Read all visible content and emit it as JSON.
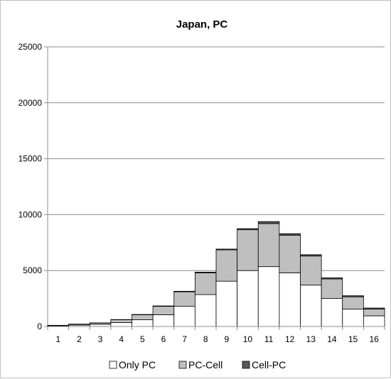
{
  "chart_data": {
    "type": "bar",
    "stacked": true,
    "title": "Japan, PC",
    "xlabel": "",
    "ylabel": "",
    "categories": [
      "1",
      "2",
      "3",
      "4",
      "5",
      "6",
      "7",
      "8",
      "9",
      "10",
      "11",
      "12",
      "13",
      "14",
      "15",
      "16"
    ],
    "series": [
      {
        "name": "Only PC",
        "color": "#ffffff",
        "values": [
          60,
          120,
          200,
          350,
          600,
          1050,
          1800,
          2850,
          4050,
          5000,
          5350,
          4800,
          3700,
          2500,
          1550,
          950
        ]
      },
      {
        "name": "PC-Cell",
        "color": "#bfbfbf",
        "values": [
          40,
          80,
          110,
          250,
          450,
          750,
          1300,
          1950,
          2800,
          3650,
          3850,
          3350,
          2600,
          1750,
          1100,
          600
        ]
      },
      {
        "name": "Cell-PC",
        "color": "#595959",
        "values": [
          5,
          10,
          15,
          20,
          25,
          40,
          50,
          60,
          70,
          100,
          180,
          150,
          120,
          100,
          100,
          100
        ]
      }
    ],
    "ylim": [
      0,
      25000
    ],
    "yticks": [
      0,
      5000,
      10000,
      15000,
      20000,
      25000
    ],
    "grid": true,
    "legend": "bottom"
  }
}
